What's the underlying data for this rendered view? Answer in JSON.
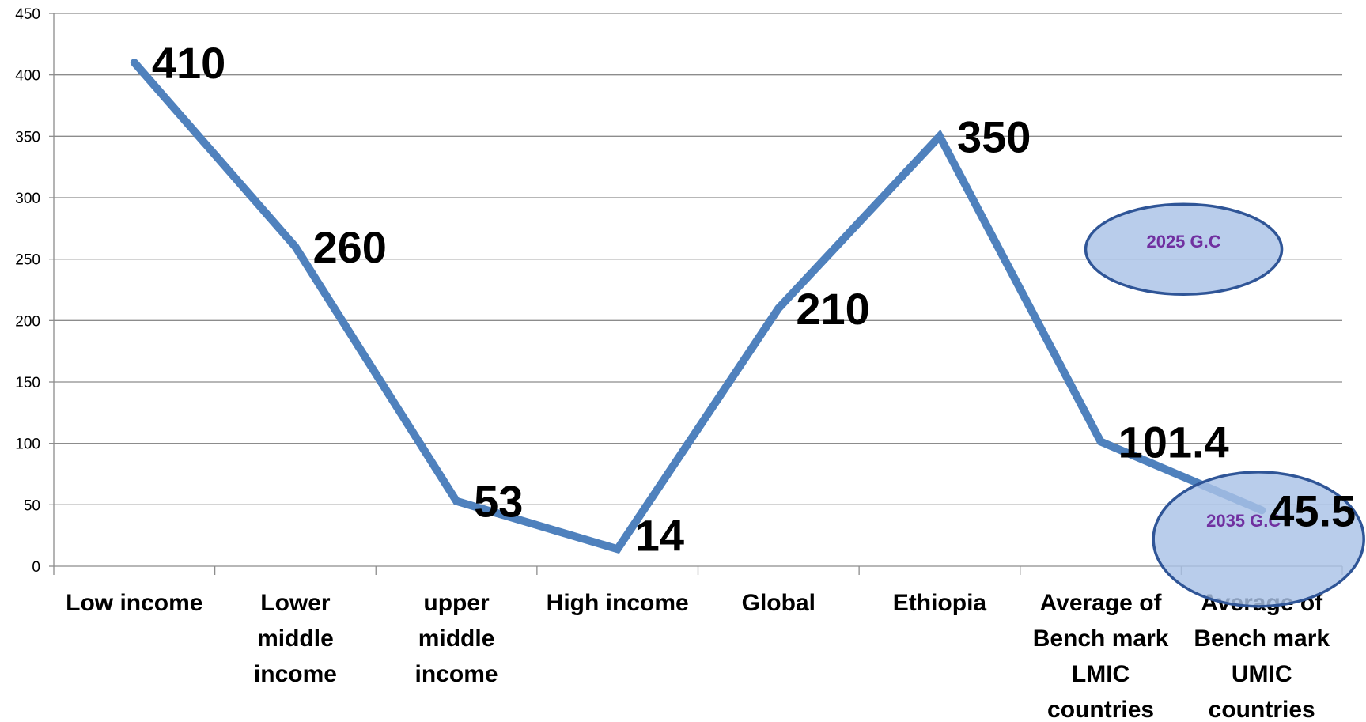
{
  "chart_data": {
    "type": "line",
    "categories": [
      [
        "Low income"
      ],
      [
        "Lower",
        "middle",
        "income"
      ],
      [
        "upper",
        "middle",
        "income"
      ],
      [
        "High  income"
      ],
      [
        "Global"
      ],
      [
        "Ethiopia"
      ],
      [
        "Average of",
        "Bench mark",
        "LMIC",
        "countries"
      ],
      [
        "Average of",
        "Bench mark",
        "UMIC",
        "countries"
      ]
    ],
    "values": [
      410,
      260,
      53,
      14,
      210,
      350,
      101.4,
      45.5
    ],
    "data_labels": [
      "410",
      "260",
      "53",
      "14",
      "210",
      "350",
      "101.4",
      "45.5"
    ],
    "ylim": [
      0,
      450
    ],
    "yticks": [
      0,
      50,
      100,
      150,
      200,
      250,
      300,
      350,
      400,
      450
    ],
    "grid": true,
    "legend": "none",
    "series_color": "#4f81bd",
    "annotations": [
      {
        "text": "2025 G.C",
        "fill": "#a9c2e6",
        "stroke": "#2f5597",
        "text_color": "#7030a0"
      },
      {
        "text": "2035 G.C",
        "fill": "#a9c2e6",
        "stroke": "#2f5597",
        "text_color": "#7030a0"
      }
    ]
  }
}
